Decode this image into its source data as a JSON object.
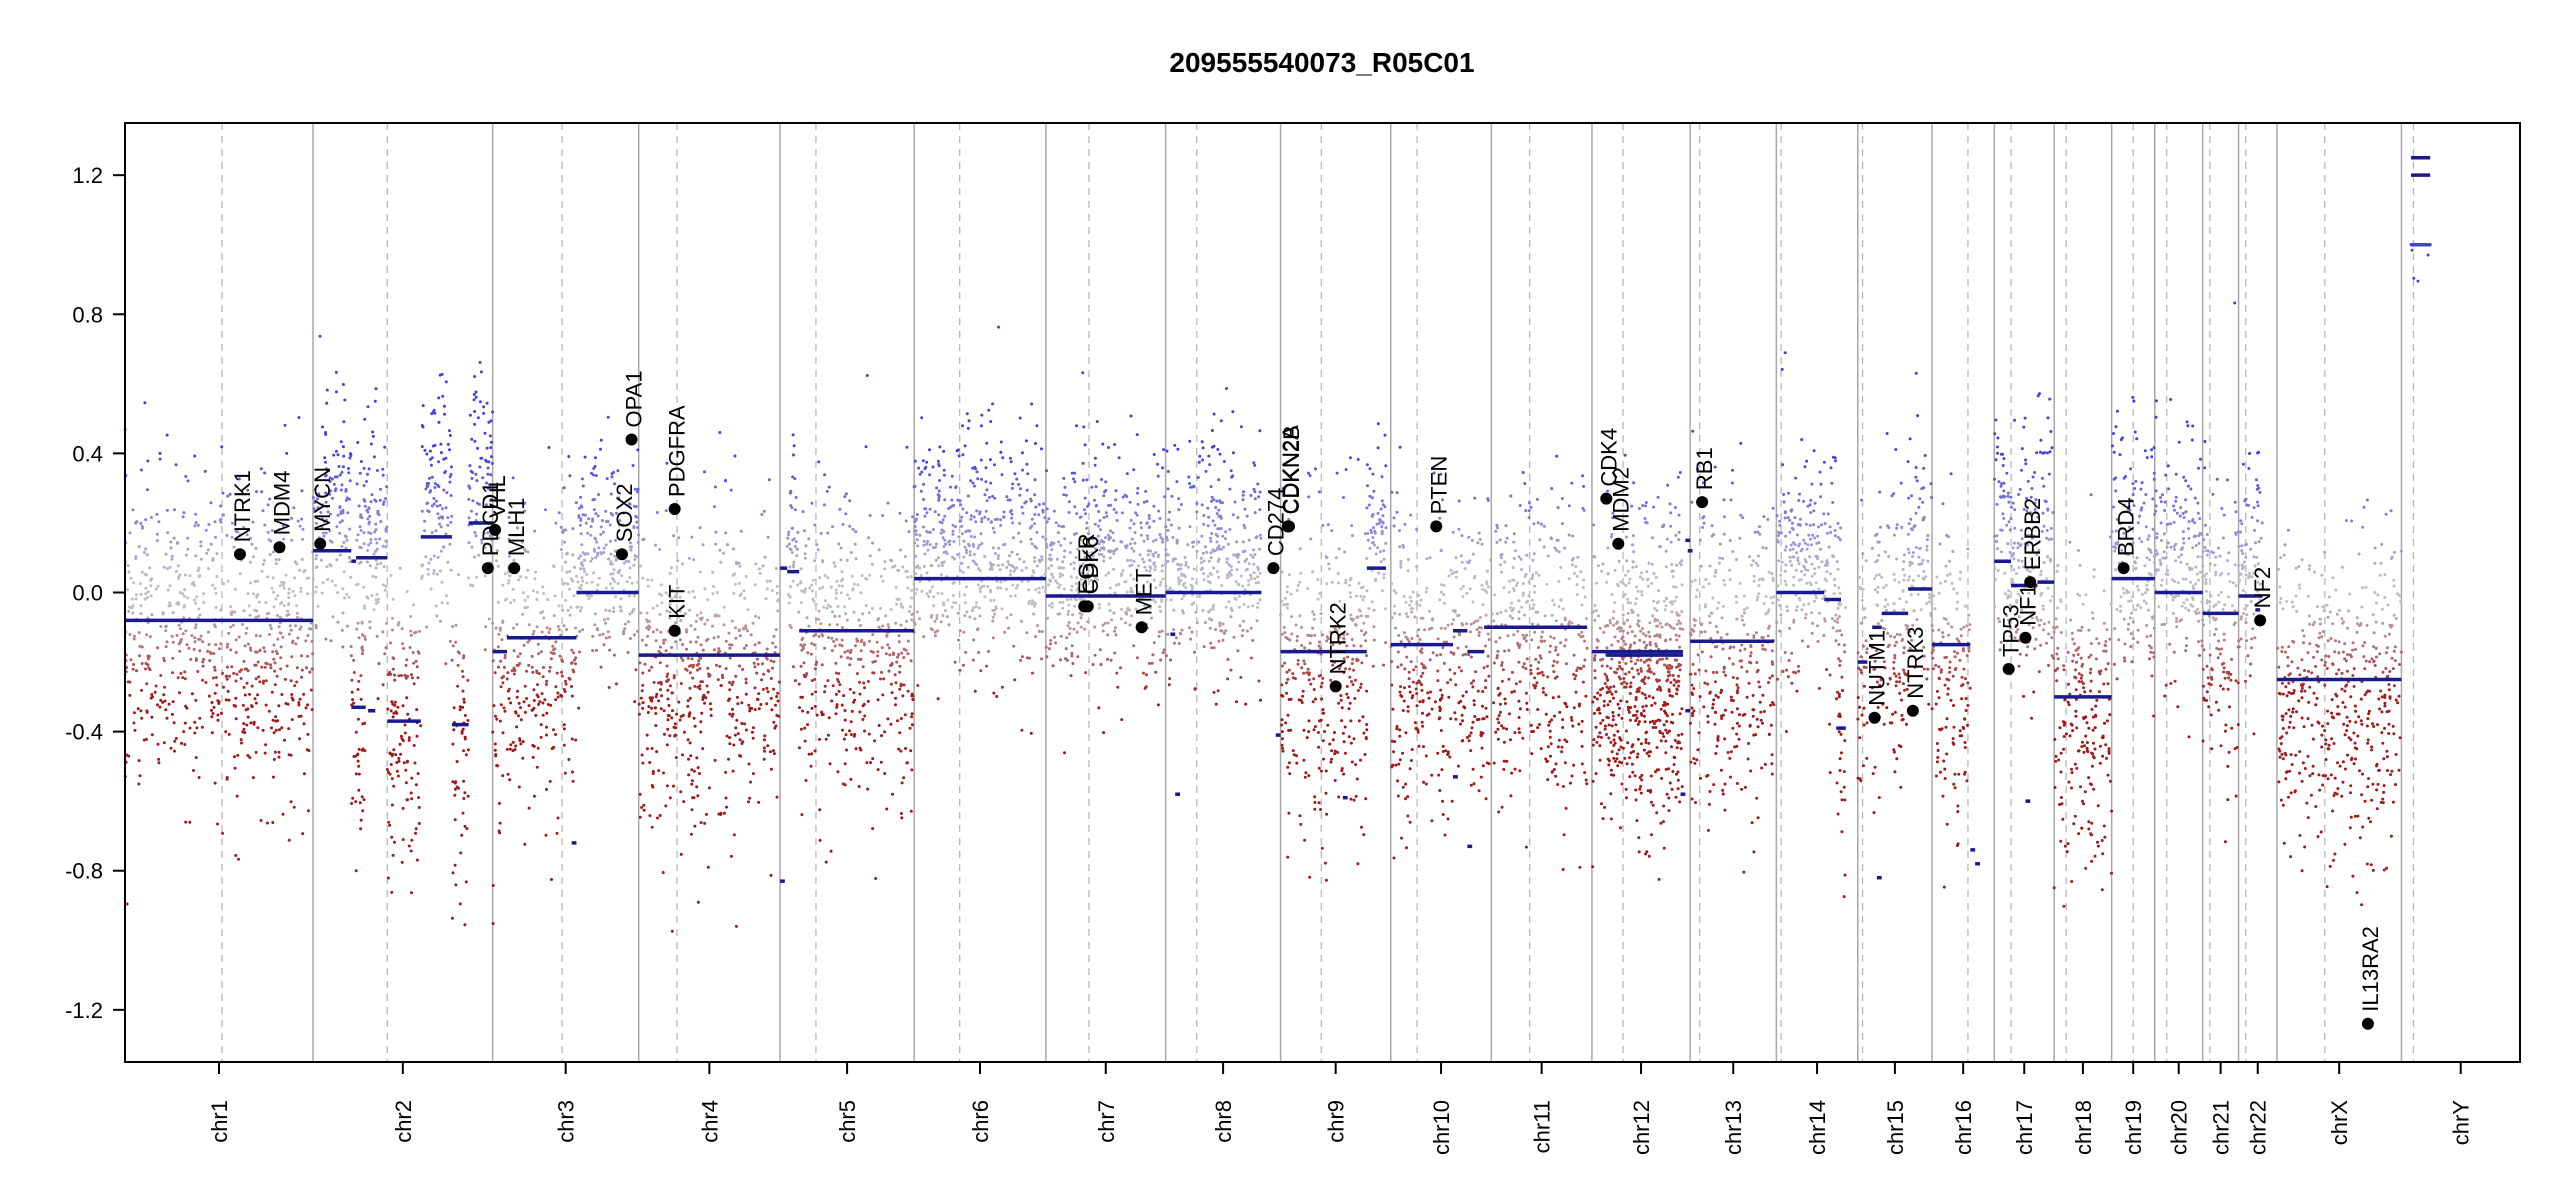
{
  "chart_data": {
    "type": "scatter",
    "title": "209555540073_R05C01",
    "xlabel": "",
    "ylabel": "",
    "ylim": [
      -1.35,
      1.35
    ],
    "y_ticks": [
      "1.2",
      "0.8",
      "0.4",
      "0.0",
      "-0.4",
      "-0.8",
      "-1.2"
    ],
    "y_tick_values": [
      1.2,
      0.8,
      0.4,
      0.0,
      -0.4,
      -0.8,
      -1.2
    ],
    "grid": false,
    "colors": {
      "gain": "#3b3bb0",
      "loss": "#a01818",
      "neutral": "#b8b8b8",
      "segment": "#1a1a90",
      "gene_point": "#000000"
    },
    "chromosomes": [
      {
        "name": "chr1",
        "start": 0.0,
        "end": 0.0785,
        "centromere": 0.0405
      },
      {
        "name": "chr2",
        "start": 0.0785,
        "end": 0.1535,
        "centromere": 0.1095
      },
      {
        "name": "chr3",
        "start": 0.1535,
        "end": 0.2145,
        "centromere": 0.1825
      },
      {
        "name": "chr4",
        "start": 0.2145,
        "end": 0.2735,
        "centromere": 0.2305
      },
      {
        "name": "chr5",
        "start": 0.2735,
        "end": 0.3295,
        "centromere": 0.2885
      },
      {
        "name": "chr6",
        "start": 0.3295,
        "end": 0.3845,
        "centromere": 0.3485
      },
      {
        "name": "chr7",
        "start": 0.3845,
        "end": 0.4345,
        "centromere": 0.4025
      },
      {
        "name": "chr8",
        "start": 0.4345,
        "end": 0.4825,
        "centromere": 0.4475
      },
      {
        "name": "chr9",
        "start": 0.4825,
        "end": 0.5285,
        "centromere": 0.4995
      },
      {
        "name": "chr10",
        "start": 0.5285,
        "end": 0.5705,
        "centromere": 0.5395
      },
      {
        "name": "chr11",
        "start": 0.5705,
        "end": 0.6125,
        "centromere": 0.5865
      },
      {
        "name": "chr12",
        "start": 0.6125,
        "end": 0.6535,
        "centromere": 0.6255
      },
      {
        "name": "chr13",
        "start": 0.6535,
        "end": 0.6895,
        "centromere": 0.6575
      },
      {
        "name": "chr14",
        "start": 0.6895,
        "end": 0.7235,
        "centromere": 0.6915
      },
      {
        "name": "chr15",
        "start": 0.7235,
        "end": 0.7545,
        "centromere": 0.7255
      },
      {
        "name": "chr16",
        "start": 0.7545,
        "end": 0.7805,
        "centromere": 0.7695
      },
      {
        "name": "chr17",
        "start": 0.7805,
        "end": 0.8055,
        "centromere": 0.7875
      },
      {
        "name": "chr18",
        "start": 0.8055,
        "end": 0.8295,
        "centromere": 0.8105
      },
      {
        "name": "chr19",
        "start": 0.8295,
        "end": 0.8475,
        "centromere": 0.8385
      },
      {
        "name": "chr20",
        "start": 0.8475,
        "end": 0.8675,
        "centromere": 0.8525
      },
      {
        "name": "chr21",
        "start": 0.8675,
        "end": 0.8825,
        "centromere": 0.8705
      },
      {
        "name": "chr22",
        "start": 0.8825,
        "end": 0.8985,
        "centromere": 0.8855
      },
      {
        "name": "chrX",
        "start": 0.8985,
        "end": 0.9505,
        "centromere": 0.9185
      },
      {
        "name": "chrY",
        "start": 0.9505,
        "end": 1.0,
        "centromere": 0.9555
      }
    ],
    "segments": [
      {
        "x0": 0.0,
        "x1": 0.0785,
        "y": -0.08
      },
      {
        "x0": 0.0785,
        "x1": 0.0945,
        "y": 0.12
      },
      {
        "x0": 0.0945,
        "x1": 0.0965,
        "y": 0.09
      },
      {
        "x0": 0.0965,
        "x1": 0.1095,
        "y": 0.1
      },
      {
        "x0": 0.0945,
        "x1": 0.1005,
        "y": -0.33
      },
      {
        "x0": 0.1015,
        "x1": 0.1045,
        "y": -0.34
      },
      {
        "x0": 0.1095,
        "x1": 0.1235,
        "y": -0.37
      },
      {
        "x0": 0.1235,
        "x1": 0.1365,
        "y": 0.16
      },
      {
        "x0": 0.1365,
        "x1": 0.1435,
        "y": -0.38
      },
      {
        "x0": 0.1435,
        "x1": 0.1535,
        "y": 0.2
      },
      {
        "x0": 0.1535,
        "x1": 0.1595,
        "y": -0.17
      },
      {
        "x0": 0.1595,
        "x1": 0.1885,
        "y": -0.13
      },
      {
        "x0": 0.1885,
        "x1": 0.2145,
        "y": 0.0
      },
      {
        "x0": 0.1865,
        "x1": 0.1885,
        "y": -0.72
      },
      {
        "x0": 0.2145,
        "x1": 0.2735,
        "y": -0.18
      },
      {
        "x0": 0.2735,
        "x1": 0.2765,
        "y": 0.07
      },
      {
        "x0": 0.2765,
        "x1": 0.2815,
        "y": 0.06
      },
      {
        "x0": 0.2815,
        "x1": 0.3295,
        "y": -0.11
      },
      {
        "x0": 0.2735,
        "x1": 0.2755,
        "y": -0.83
      },
      {
        "x0": 0.3295,
        "x1": 0.3845,
        "y": 0.04
      },
      {
        "x0": 0.3845,
        "x1": 0.4345,
        "y": -0.01
      },
      {
        "x0": 0.4345,
        "x1": 0.4745,
        "y": 0.0
      },
      {
        "x0": 0.4365,
        "x1": 0.4385,
        "y": -0.12
      },
      {
        "x0": 0.4385,
        "x1": 0.4405,
        "y": -0.58
      },
      {
        "x0": 0.4805,
        "x1": 0.4825,
        "y": -0.41
      },
      {
        "x0": 0.4825,
        "x1": 0.5185,
        "y": -0.17
      },
      {
        "x0": 0.5085,
        "x1": 0.5105,
        "y": -0.59
      },
      {
        "x0": 0.5185,
        "x1": 0.5265,
        "y": 0.07
      },
      {
        "x0": 0.5285,
        "x1": 0.5545,
        "y": -0.15
      },
      {
        "x0": 0.5545,
        "x1": 0.5605,
        "y": -0.11
      },
      {
        "x0": 0.5545,
        "x1": 0.5565,
        "y": -0.53
      },
      {
        "x0": 0.5605,
        "x1": 0.5675,
        "y": -0.17
      },
      {
        "x0": 0.5675,
        "x1": 0.6105,
        "y": -0.1
      },
      {
        "x0": 0.5605,
        "x1": 0.5625,
        "y": -0.73
      },
      {
        "x0": 0.6125,
        "x1": 0.6505,
        "y": -0.17
      },
      {
        "x0": 0.6185,
        "x1": 0.6505,
        "y": -0.18
      },
      {
        "x0": 0.6495,
        "x1": 0.6515,
        "y": -0.58
      },
      {
        "x0": 0.6515,
        "x1": 0.6535,
        "y": -0.34
      },
      {
        "x0": 0.6515,
        "x1": 0.6535,
        "y": 0.15
      },
      {
        "x0": 0.6525,
        "x1": 0.6545,
        "y": 0.12
      },
      {
        "x0": 0.6535,
        "x1": 0.6885,
        "y": -0.14
      },
      {
        "x0": 0.6895,
        "x1": 0.7095,
        "y": 0.0
      },
      {
        "x0": 0.7095,
        "x1": 0.7165,
        "y": -0.02
      },
      {
        "x0": 0.7145,
        "x1": 0.7185,
        "y": -0.39
      },
      {
        "x0": 0.7235,
        "x1": 0.7275,
        "y": -0.2
      },
      {
        "x0": 0.7295,
        "x1": 0.7335,
        "y": -0.1
      },
      {
        "x0": 0.7335,
        "x1": 0.7445,
        "y": -0.06
      },
      {
        "x0": 0.7445,
        "x1": 0.7545,
        "y": 0.01
      },
      {
        "x0": 0.7315,
        "x1": 0.7335,
        "y": -0.82
      },
      {
        "x0": 0.7545,
        "x1": 0.7705,
        "y": -0.15
      },
      {
        "x0": 0.7705,
        "x1": 0.7725,
        "y": -0.74
      },
      {
        "x0": 0.7725,
        "x1": 0.7745,
        "y": -0.78
      },
      {
        "x0": 0.7805,
        "x1": 0.7875,
        "y": 0.09
      },
      {
        "x0": 0.7875,
        "x1": 0.7985,
        "y": 0.02
      },
      {
        "x0": 0.7985,
        "x1": 0.8055,
        "y": 0.03
      },
      {
        "x0": 0.7935,
        "x1": 0.7955,
        "y": -0.6
      },
      {
        "x0": 0.8055,
        "x1": 0.8295,
        "y": -0.3
      },
      {
        "x0": 0.8295,
        "x1": 0.8475,
        "y": 0.04
      },
      {
        "x0": 0.8475,
        "x1": 0.8675,
        "y": 0.0
      },
      {
        "x0": 0.8675,
        "x1": 0.8825,
        "y": -0.06
      },
      {
        "x0": 0.8825,
        "x1": 0.8925,
        "y": -0.01
      },
      {
        "x0": 0.8895,
        "x1": 0.8915,
        "y": -0.05
      },
      {
        "x0": 0.8985,
        "x1": 0.9505,
        "y": -0.25
      },
      {
        "x0": 0.9545,
        "x1": 0.9625,
        "y": 1.25
      },
      {
        "x0": 0.9545,
        "x1": 0.9625,
        "y": 1.2
      }
    ],
    "genes": [
      {
        "name": "NTRK1",
        "x": 0.048,
        "y": 0.11
      },
      {
        "name": "MDM4",
        "x": 0.0645,
        "y": 0.13
      },
      {
        "name": "MYCN",
        "x": 0.0815,
        "y": 0.14
      },
      {
        "name": "PDGFRA",
        "x": 0.2295,
        "y": 0.24
      },
      {
        "name": "KIT",
        "x": 0.2295,
        "y": -0.11
      },
      {
        "name": "SOX2",
        "x": 0.2075,
        "y": 0.11
      },
      {
        "name": "OPA1",
        "x": 0.2115,
        "y": 0.44
      },
      {
        "name": "PDCD1",
        "x": 0.1515,
        "y": 0.07
      },
      {
        "name": "VHL",
        "x": 0.1545,
        "y": 0.18
      },
      {
        "name": "MLH1",
        "x": 0.1625,
        "y": 0.07
      },
      {
        "name": "EGFR",
        "x": 0.4005,
        "y": -0.04
      },
      {
        "name": "CDK6",
        "x": 0.402,
        "y": -0.04
      },
      {
        "name": "MET",
        "x": 0.4245,
        "y": -0.1
      },
      {
        "name": "CD274",
        "x": 0.4795,
        "y": 0.07
      },
      {
        "name": "CDKN2A",
        "x": 0.4855,
        "y": 0.19
      },
      {
        "name": "CDKN2B",
        "x": 0.486,
        "y": 0.19
      },
      {
        "name": "NTRK2",
        "x": 0.5055,
        "y": -0.27
      },
      {
        "name": "PTEN",
        "x": 0.5475,
        "y": 0.19
      },
      {
        "name": "CDK4",
        "x": 0.6185,
        "y": 0.27
      },
      {
        "name": "MDM2",
        "x": 0.6235,
        "y": 0.14
      },
      {
        "name": "RB1",
        "x": 0.6585,
        "y": 0.26
      },
      {
        "name": "NUTM1",
        "x": 0.7305,
        "y": -0.36
      },
      {
        "name": "NTRK3",
        "x": 0.7465,
        "y": -0.34
      },
      {
        "name": "TP53",
        "x": 0.7865,
        "y": -0.22
      },
      {
        "name": "NF1",
        "x": 0.7935,
        "y": -0.13
      },
      {
        "name": "ERBB2",
        "x": 0.7955,
        "y": 0.03
      },
      {
        "name": "BRD4",
        "x": 0.8345,
        "y": 0.07
      },
      {
        "name": "NF2",
        "x": 0.8915,
        "y": -0.08
      },
      {
        "name": "IL13RA2",
        "x": 0.9365,
        "y": -1.24
      }
    ]
  }
}
